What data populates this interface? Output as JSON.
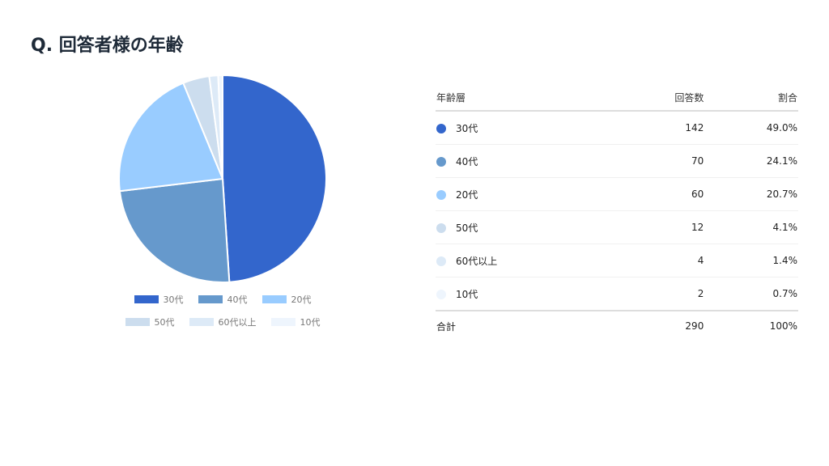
{
  "title": "Q. 回答者様の年齢",
  "chart_data": {
    "type": "pie",
    "categories": [
      "30代",
      "40代",
      "20代",
      "50代",
      "60代以上",
      "10代"
    ],
    "values": [
      142,
      70,
      60,
      12,
      4,
      2
    ],
    "percentages": [
      "49.0%",
      "24.1%",
      "20.7%",
      "4.1%",
      "1.4%",
      "0.7%"
    ],
    "colors": [
      "#3366cc",
      "#6699cc",
      "#99ccff",
      "#ccddee",
      "#ddeaf7",
      "#eef5fd"
    ],
    "legend_placement": "bottom"
  },
  "table": {
    "headers": [
      "年齢層",
      "回答数",
      "割合"
    ],
    "total": {
      "label": "合計",
      "count": "290",
      "pct": "100%"
    }
  }
}
